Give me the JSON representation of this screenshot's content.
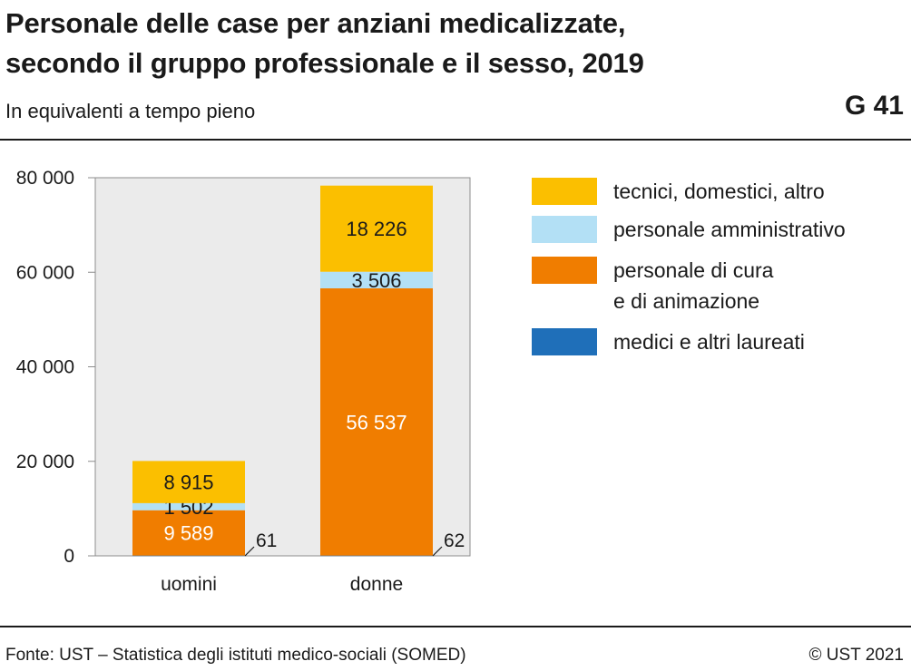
{
  "header": {
    "title_line1": "Personale delle case per anziani medicalizzate,",
    "title_line2": "secondo il gruppo professionale e il sesso, 2019",
    "subtitle": "In equivalenti a tempo pieno",
    "code": "G 41"
  },
  "footer": {
    "source": "Fonte: UST – Statistica degli istituti medico-sociali (SOMED)",
    "copyright": "© UST 2021"
  },
  "chart_data": {
    "type": "bar",
    "stacked": true,
    "categories": [
      "uomini",
      "donne"
    ],
    "ylim": [
      0,
      80000
    ],
    "yticks": [
      0,
      20000,
      40000,
      60000,
      80000
    ],
    "ytick_labels": [
      "0",
      "20 000",
      "40 000",
      "60 000",
      "80 000"
    ],
    "grid": false,
    "background": "#ebebeb",
    "series": [
      {
        "name": "medici e altri laureati",
        "color": "#1f6fb9",
        "values": [
          61,
          62
        ],
        "labels": [
          "61",
          "62"
        ]
      },
      {
        "name": "personale di cura\ne di animazione",
        "color": "#f07d00",
        "values": [
          9589,
          56537
        ],
        "labels": [
          "9 589",
          "56 537"
        ]
      },
      {
        "name": "personale amministrativo",
        "color": "#b3e0f5",
        "values": [
          1502,
          3506
        ],
        "labels": [
          "1 502",
          "3 506"
        ]
      },
      {
        "name": "tecnici, domestici, altro",
        "color": "#fbbf00",
        "values": [
          8915,
          18226
        ],
        "labels": [
          "8 915",
          "18 226"
        ]
      }
    ]
  },
  "legend": [
    {
      "label_lines": [
        "tecnici, domestici, altro"
      ],
      "color": "#fbbf00"
    },
    {
      "label_lines": [
        "personale amministrativo"
      ],
      "color": "#b3e0f5"
    },
    {
      "label_lines": [
        "personale di cura",
        "e di animazione"
      ],
      "color": "#f07d00"
    },
    {
      "label_lines": [
        "medici e altri laureati"
      ],
      "color": "#1f6fb9"
    }
  ]
}
